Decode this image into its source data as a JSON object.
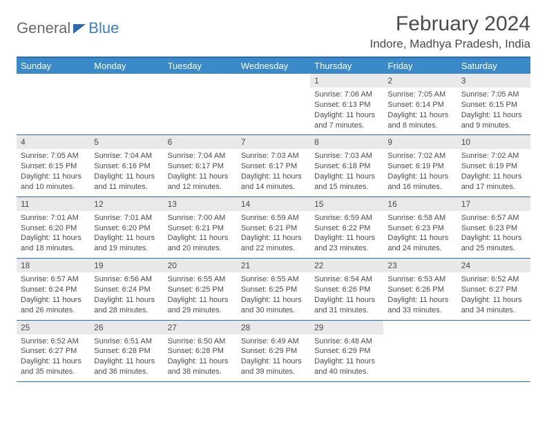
{
  "logo": {
    "text1": "General",
    "text2": "Blue"
  },
  "title": "February 2024",
  "location": "Indore, Madhya Pradesh, India",
  "style": {
    "header_bg": "#3a89c9",
    "header_fg": "#ffffff",
    "border_color": "#2a6bb0",
    "daynum_bg": "#e9e9e9",
    "text_color": "#4a4a4a",
    "page_bg": "#ffffff",
    "title_fontsize": 30,
    "location_fontsize": 17,
    "dayhead_fontsize": 13,
    "daynum_fontsize": 12,
    "info_fontsize": 11
  },
  "day_names": [
    "Sunday",
    "Monday",
    "Tuesday",
    "Wednesday",
    "Thursday",
    "Friday",
    "Saturday"
  ],
  "weeks": [
    [
      null,
      null,
      null,
      null,
      {
        "n": "1",
        "sr": "7:06 AM",
        "ss": "6:13 PM",
        "dl": "11 hours and 7 minutes."
      },
      {
        "n": "2",
        "sr": "7:05 AM",
        "ss": "6:14 PM",
        "dl": "11 hours and 8 minutes."
      },
      {
        "n": "3",
        "sr": "7:05 AM",
        "ss": "6:15 PM",
        "dl": "11 hours and 9 minutes."
      }
    ],
    [
      {
        "n": "4",
        "sr": "7:05 AM",
        "ss": "6:15 PM",
        "dl": "11 hours and 10 minutes."
      },
      {
        "n": "5",
        "sr": "7:04 AM",
        "ss": "6:16 PM",
        "dl": "11 hours and 11 minutes."
      },
      {
        "n": "6",
        "sr": "7:04 AM",
        "ss": "6:17 PM",
        "dl": "11 hours and 12 minutes."
      },
      {
        "n": "7",
        "sr": "7:03 AM",
        "ss": "6:17 PM",
        "dl": "11 hours and 14 minutes."
      },
      {
        "n": "8",
        "sr": "7:03 AM",
        "ss": "6:18 PM",
        "dl": "11 hours and 15 minutes."
      },
      {
        "n": "9",
        "sr": "7:02 AM",
        "ss": "6:19 PM",
        "dl": "11 hours and 16 minutes."
      },
      {
        "n": "10",
        "sr": "7:02 AM",
        "ss": "6:19 PM",
        "dl": "11 hours and 17 minutes."
      }
    ],
    [
      {
        "n": "11",
        "sr": "7:01 AM",
        "ss": "6:20 PM",
        "dl": "11 hours and 18 minutes."
      },
      {
        "n": "12",
        "sr": "7:01 AM",
        "ss": "6:20 PM",
        "dl": "11 hours and 19 minutes."
      },
      {
        "n": "13",
        "sr": "7:00 AM",
        "ss": "6:21 PM",
        "dl": "11 hours and 20 minutes."
      },
      {
        "n": "14",
        "sr": "6:59 AM",
        "ss": "6:21 PM",
        "dl": "11 hours and 22 minutes."
      },
      {
        "n": "15",
        "sr": "6:59 AM",
        "ss": "6:22 PM",
        "dl": "11 hours and 23 minutes."
      },
      {
        "n": "16",
        "sr": "6:58 AM",
        "ss": "6:23 PM",
        "dl": "11 hours and 24 minutes."
      },
      {
        "n": "17",
        "sr": "6:57 AM",
        "ss": "6:23 PM",
        "dl": "11 hours and 25 minutes."
      }
    ],
    [
      {
        "n": "18",
        "sr": "6:57 AM",
        "ss": "6:24 PM",
        "dl": "11 hours and 26 minutes."
      },
      {
        "n": "19",
        "sr": "6:56 AM",
        "ss": "6:24 PM",
        "dl": "11 hours and 28 minutes."
      },
      {
        "n": "20",
        "sr": "6:55 AM",
        "ss": "6:25 PM",
        "dl": "11 hours and 29 minutes."
      },
      {
        "n": "21",
        "sr": "6:55 AM",
        "ss": "6:25 PM",
        "dl": "11 hours and 30 minutes."
      },
      {
        "n": "22",
        "sr": "6:54 AM",
        "ss": "6:26 PM",
        "dl": "11 hours and 31 minutes."
      },
      {
        "n": "23",
        "sr": "6:53 AM",
        "ss": "6:26 PM",
        "dl": "11 hours and 33 minutes."
      },
      {
        "n": "24",
        "sr": "6:52 AM",
        "ss": "6:27 PM",
        "dl": "11 hours and 34 minutes."
      }
    ],
    [
      {
        "n": "25",
        "sr": "6:52 AM",
        "ss": "6:27 PM",
        "dl": "11 hours and 35 minutes."
      },
      {
        "n": "26",
        "sr": "6:51 AM",
        "ss": "6:28 PM",
        "dl": "11 hours and 36 minutes."
      },
      {
        "n": "27",
        "sr": "6:50 AM",
        "ss": "6:28 PM",
        "dl": "11 hours and 38 minutes."
      },
      {
        "n": "28",
        "sr": "6:49 AM",
        "ss": "6:29 PM",
        "dl": "11 hours and 39 minutes."
      },
      {
        "n": "29",
        "sr": "6:48 AM",
        "ss": "6:29 PM",
        "dl": "11 hours and 40 minutes."
      },
      null,
      null
    ]
  ],
  "labels": {
    "sunrise": "Sunrise: ",
    "sunset": "Sunset: ",
    "daylight": "Daylight: "
  }
}
